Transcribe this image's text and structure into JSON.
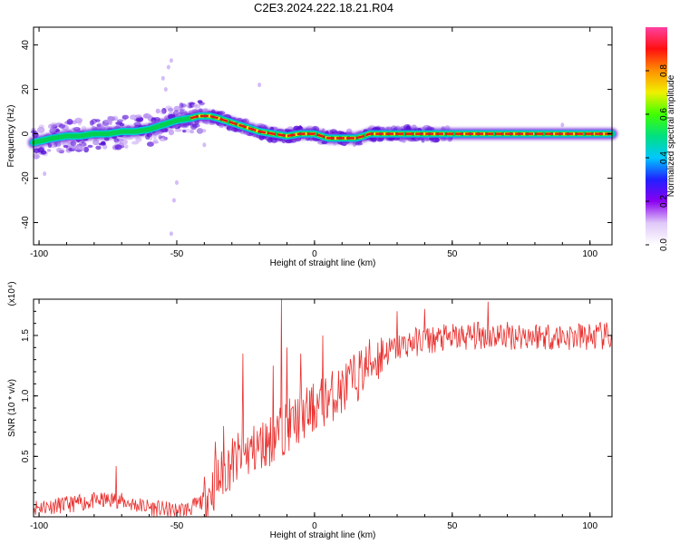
{
  "figure": {
    "title": "C2E3.2024.222.18.21.R04"
  },
  "colors": {
    "snr_line": "#e8302e",
    "ridge_core": "#e01818",
    "ridge_mid": "#00d050",
    "ridge_outer": "#00c8d8",
    "spread": "#5a12d8",
    "spread_light": "#b890f0"
  },
  "chart_data": [
    {
      "id": "spectrogram",
      "type": "heatmap",
      "xlabel": "Height of straight line (km)",
      "ylabel": "Frequency (Hz)",
      "xlim": [
        -102,
        108
      ],
      "ylim": [
        -50,
        48
      ],
      "xticks": [
        -100,
        -50,
        0,
        50,
        100
      ],
      "xtick_labels": [
        "-100",
        "-50",
        "0",
        "50",
        "100"
      ],
      "yticks": [
        -40,
        -20,
        0,
        20,
        40
      ],
      "ytick_labels": [
        "-40",
        "-20",
        "0",
        "20",
        "40"
      ],
      "colorbar": {
        "label": "Normalized spectral amplitude",
        "range": [
          0,
          1
        ],
        "ticks": [
          0,
          0.2,
          0.4,
          0.6,
          0.8
        ],
        "tick_labels": [
          "0.0",
          "0.2",
          "0.4",
          "0.6",
          "0.8"
        ],
        "colormap": [
          "#ffffff",
          "#e0c8f8",
          "#8a00f0",
          "#2020ff",
          "#00c8ff",
          "#00e080",
          "#40ff00",
          "#f0f000",
          "#ff9000",
          "#ff1010",
          "#ff40a0"
        ]
      },
      "ridge": {
        "x": [
          -102,
          -95,
          -90,
          -85,
          -80,
          -75,
          -70,
          -65,
          -60,
          -55,
          -50,
          -45,
          -42,
          -38,
          -35,
          -30,
          -25,
          -20,
          -15,
          -10,
          -5,
          0,
          5,
          10,
          15,
          18,
          20,
          30,
          50,
          70,
          90,
          108
        ],
        "y": [
          -4,
          -2,
          -1,
          -1,
          0,
          0,
          1,
          1,
          2,
          4,
          6,
          7,
          8,
          8,
          7,
          5,
          3,
          1,
          0,
          -1,
          0,
          0,
          -2,
          -2,
          -2,
          -1,
          0,
          0,
          0,
          0,
          0,
          0
        ]
      }
    },
    {
      "id": "snr",
      "type": "line",
      "xlabel": "Height of straight line (km)",
      "ylabel": "SNR (10 * v/v)",
      "y_multiplier": "(x10⁴)",
      "xlim": [
        -102,
        108
      ],
      "ylim": [
        0,
        1.8
      ],
      "xticks": [
        -100,
        -50,
        0,
        50,
        100
      ],
      "xtick_labels": [
        "-100",
        "-50",
        "0",
        "50",
        "100"
      ],
      "yticks": [
        0.5,
        1.0,
        1.5
      ],
      "ytick_labels": [
        "0.5",
        "1.0",
        "1.5"
      ],
      "trend": {
        "x": [
          -102,
          -90,
          -80,
          -72,
          -65,
          -55,
          -50,
          -45,
          -40,
          -35,
          -30,
          -25,
          -20,
          -15,
          -10,
          -5,
          0,
          5,
          10,
          15,
          20,
          25,
          30,
          35,
          40,
          50,
          60,
          70,
          80,
          90,
          100,
          108
        ],
        "y": [
          0.08,
          0.1,
          0.13,
          0.14,
          0.1,
          0.06,
          0.05,
          0.07,
          0.14,
          0.3,
          0.45,
          0.52,
          0.58,
          0.65,
          0.75,
          0.82,
          0.9,
          0.98,
          1.05,
          1.15,
          1.27,
          1.35,
          1.4,
          1.44,
          1.46,
          1.48,
          1.5,
          1.5,
          1.5,
          1.49,
          1.49,
          1.49
        ]
      },
      "spikes": [
        {
          "x": -72,
          "y": 0.42
        },
        {
          "x": -36,
          "y": 0.62
        },
        {
          "x": -33,
          "y": 0.75
        },
        {
          "x": -26,
          "y": 1.35
        },
        {
          "x": -15,
          "y": 1.25
        },
        {
          "x": -12,
          "y": 1.8
        },
        {
          "x": -10,
          "y": 1.4
        },
        {
          "x": -5,
          "y": 1.35
        },
        {
          "x": 3,
          "y": 1.5
        },
        {
          "x": 30,
          "y": 1.7
        },
        {
          "x": 40,
          "y": 1.72
        },
        {
          "x": 63,
          "y": 1.78
        }
      ]
    }
  ]
}
